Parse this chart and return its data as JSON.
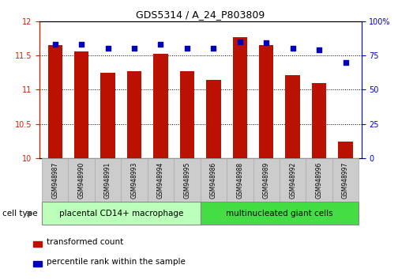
{
  "title": "GDS5314 / A_24_P803809",
  "samples": [
    "GSM948987",
    "GSM948990",
    "GSM948991",
    "GSM948993",
    "GSM948994",
    "GSM948995",
    "GSM948986",
    "GSM948988",
    "GSM948989",
    "GSM948992",
    "GSM948996",
    "GSM948997"
  ],
  "transformed_count": [
    11.65,
    11.56,
    11.25,
    11.27,
    11.52,
    11.27,
    11.14,
    11.76,
    11.65,
    11.21,
    11.1,
    10.24
  ],
  "percentile_rank": [
    83,
    83,
    80,
    80,
    83,
    80,
    80,
    85,
    84,
    80,
    79,
    70
  ],
  "ylim_left": [
    10,
    12
  ],
  "ylim_right": [
    0,
    100
  ],
  "yticks_left": [
    10,
    10.5,
    11,
    11.5,
    12
  ],
  "ytick_labels_left": [
    "10",
    "10.5",
    "11",
    "11.5",
    "12"
  ],
  "yticks_right": [
    0,
    25,
    50,
    75,
    100
  ],
  "ytick_labels_right": [
    "0",
    "25",
    "50",
    "75",
    "100%"
  ],
  "bar_color": "#bb1100",
  "dot_color": "#0000bb",
  "group1_label": "placental CD14+ macrophage",
  "group2_label": "multinucleated giant cells",
  "group1_color": "#bbffbb",
  "group2_color": "#44dd44",
  "group1_count": 6,
  "group2_count": 6,
  "legend_bar_label": "transformed count",
  "legend_dot_label": "percentile rank within the sample",
  "cell_type_label": "cell type",
  "background_color": "#ffffff",
  "plot_bg_color": "#ffffff",
  "grid_color": "#000000",
  "bar_width": 0.55,
  "label_box_color": "#cccccc",
  "left_axis_color": "#cc2200",
  "right_axis_color": "#0000cc"
}
